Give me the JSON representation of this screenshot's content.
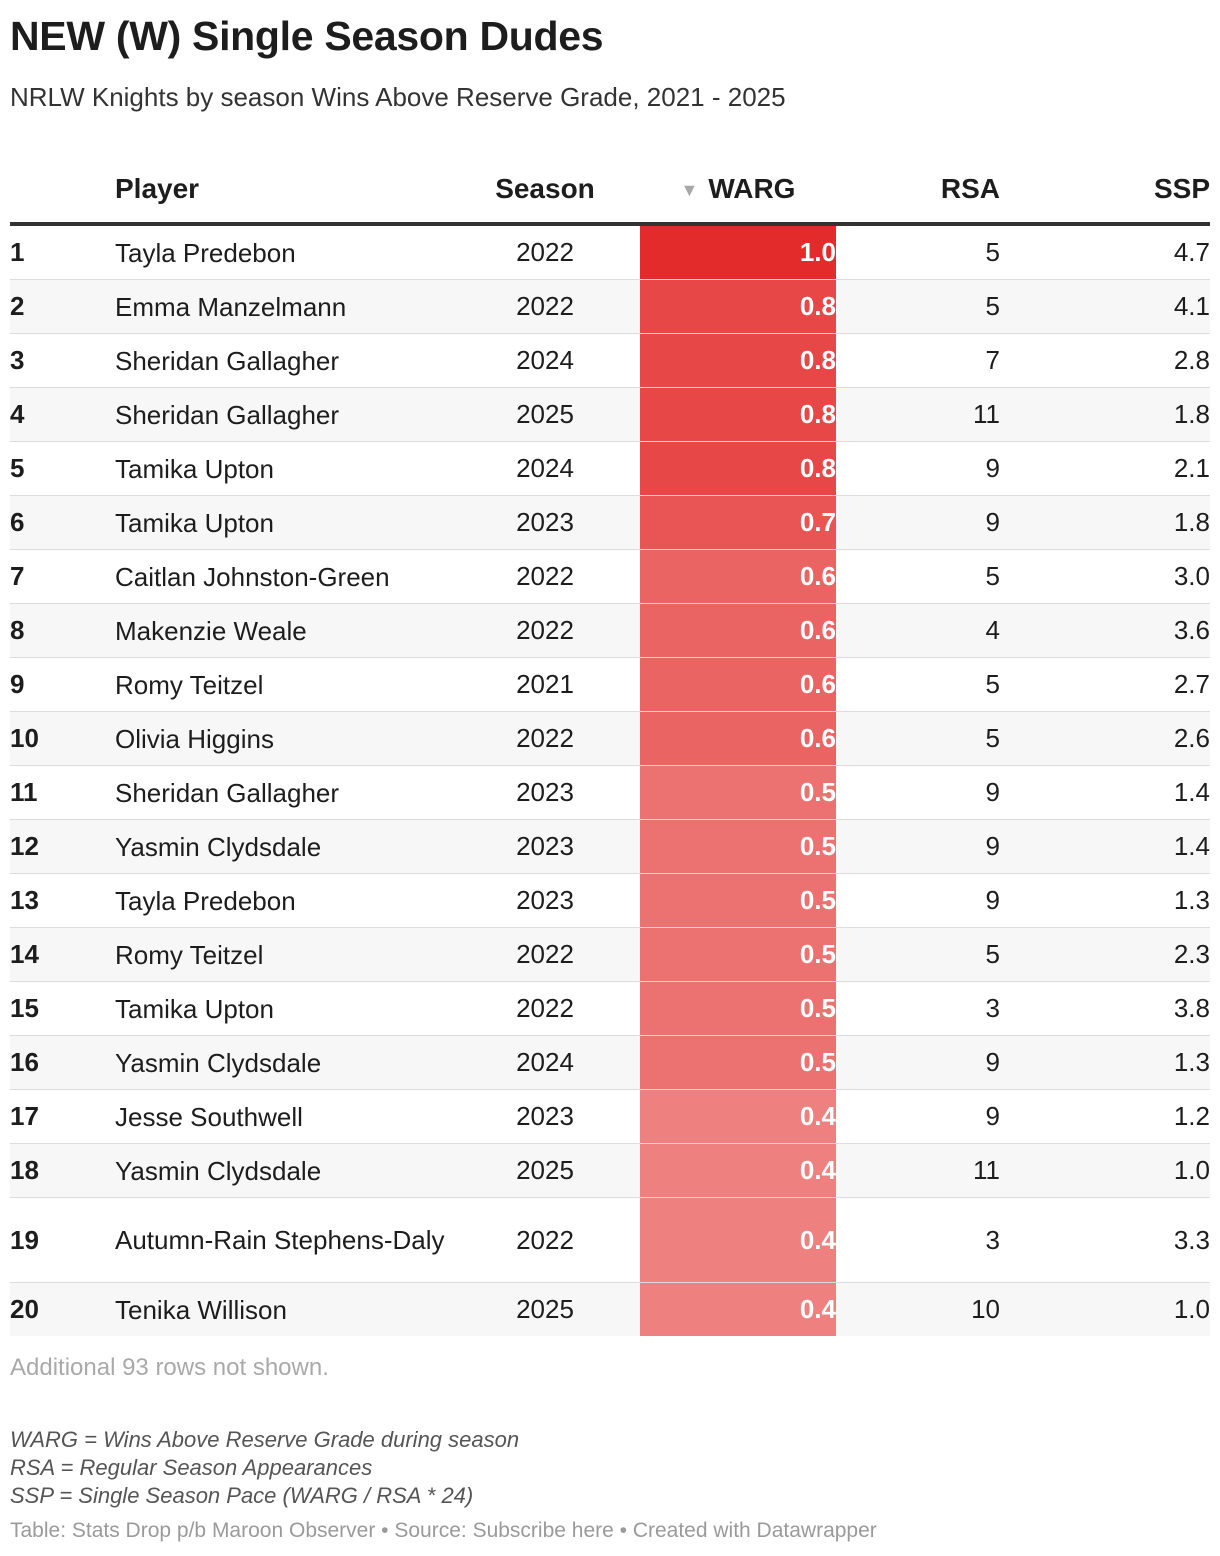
{
  "header": {
    "title": "NEW (W) Single Season Dudes",
    "subtitle": "NRLW Knights by season Wins Above Reserve Grade, 2021 - 2025"
  },
  "table": {
    "columns": {
      "rank": "",
      "player": "Player",
      "season": "Season",
      "warg": "WARG",
      "rsa": "RSA",
      "ssp": "SSP"
    },
    "sort_icon": "sort-descending-triangle",
    "sorted_column": "warg",
    "heat_color": "#e32b2b",
    "rows": [
      {
        "rank": "1",
        "player": "Tayla Predebon",
        "season": "2022",
        "warg": "1.0",
        "rsa": "5",
        "ssp": "4.7"
      },
      {
        "rank": "2",
        "player": "Emma Manzelmann",
        "season": "2022",
        "warg": "0.8",
        "rsa": "5",
        "ssp": "4.1"
      },
      {
        "rank": "3",
        "player": "Sheridan Gallagher",
        "season": "2024",
        "warg": "0.8",
        "rsa": "7",
        "ssp": "2.8"
      },
      {
        "rank": "4",
        "player": "Sheridan Gallagher",
        "season": "2025",
        "warg": "0.8",
        "rsa": "11",
        "ssp": "1.8"
      },
      {
        "rank": "5",
        "player": "Tamika Upton",
        "season": "2024",
        "warg": "0.8",
        "rsa": "9",
        "ssp": "2.1"
      },
      {
        "rank": "6",
        "player": "Tamika Upton",
        "season": "2023",
        "warg": "0.7",
        "rsa": "9",
        "ssp": "1.8"
      },
      {
        "rank": "7",
        "player": "Caitlan Johnston-Green",
        "season": "2022",
        "warg": "0.6",
        "rsa": "5",
        "ssp": "3.0"
      },
      {
        "rank": "8",
        "player": "Makenzie Weale",
        "season": "2022",
        "warg": "0.6",
        "rsa": "4",
        "ssp": "3.6"
      },
      {
        "rank": "9",
        "player": "Romy Teitzel",
        "season": "2021",
        "warg": "0.6",
        "rsa": "5",
        "ssp": "2.7"
      },
      {
        "rank": "10",
        "player": "Olivia Higgins",
        "season": "2022",
        "warg": "0.6",
        "rsa": "5",
        "ssp": "2.6"
      },
      {
        "rank": "11",
        "player": "Sheridan Gallagher",
        "season": "2023",
        "warg": "0.5",
        "rsa": "9",
        "ssp": "1.4"
      },
      {
        "rank": "12",
        "player": "Yasmin Clydsdale",
        "season": "2023",
        "warg": "0.5",
        "rsa": "9",
        "ssp": "1.4"
      },
      {
        "rank": "13",
        "player": "Tayla Predebon",
        "season": "2023",
        "warg": "0.5",
        "rsa": "9",
        "ssp": "1.3"
      },
      {
        "rank": "14",
        "player": "Romy Teitzel",
        "season": "2022",
        "warg": "0.5",
        "rsa": "5",
        "ssp": "2.3"
      },
      {
        "rank": "15",
        "player": "Tamika Upton",
        "season": "2022",
        "warg": "0.5",
        "rsa": "3",
        "ssp": "3.8"
      },
      {
        "rank": "16",
        "player": "Yasmin Clydsdale",
        "season": "2024",
        "warg": "0.5",
        "rsa": "9",
        "ssp": "1.3"
      },
      {
        "rank": "17",
        "player": "Jesse Southwell",
        "season": "2023",
        "warg": "0.4",
        "rsa": "9",
        "ssp": "1.2"
      },
      {
        "rank": "18",
        "player": "Yasmin Clydsdale",
        "season": "2025",
        "warg": "0.4",
        "rsa": "11",
        "ssp": "1.0"
      },
      {
        "rank": "19",
        "player": "Autumn-Rain Stephens-Daly",
        "season": "2022",
        "warg": "0.4",
        "rsa": "3",
        "ssp": "3.3"
      },
      {
        "rank": "20",
        "player": "Tenika Willison",
        "season": "2025",
        "warg": "0.4",
        "rsa": "10",
        "ssp": "1.0"
      }
    ]
  },
  "chart_data": {
    "type": "table",
    "columns": [
      "",
      "Player",
      "Season",
      "WARG",
      "RSA",
      "SSP"
    ],
    "warg_values": [
      1.0,
      0.8,
      0.8,
      0.8,
      0.8,
      0.7,
      0.6,
      0.6,
      0.6,
      0.6,
      0.5,
      0.5,
      0.5,
      0.5,
      0.5,
      0.5,
      0.4,
      0.4,
      0.4,
      0.4
    ]
  },
  "notes": {
    "rows_hidden": "Additional 93 rows not shown.",
    "definitions": [
      "WARG = Wins Above Reserve Grade during season",
      "RSA = Regular Season Appearances",
      "SSP = Single Season Pace (WARG / RSA * 24)"
    ],
    "footer": "Table: Stats Drop p/b Maroon Observer • Source: Subscribe here • Created with Datawrapper"
  }
}
